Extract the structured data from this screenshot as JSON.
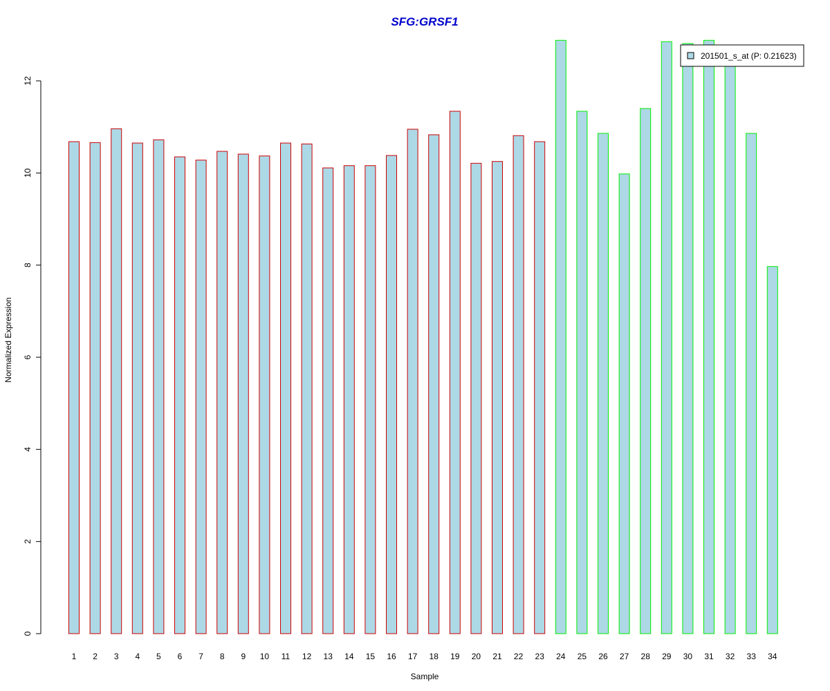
{
  "chart_data": {
    "type": "bar",
    "title": "SFG:GRSF1",
    "xlabel": "Sample",
    "ylabel": "Normalized Expression",
    "categories": [
      "1",
      "2",
      "3",
      "4",
      "5",
      "6",
      "7",
      "8",
      "9",
      "10",
      "11",
      "12",
      "13",
      "14",
      "15",
      "16",
      "17",
      "18",
      "19",
      "20",
      "21",
      "22",
      "23",
      "24",
      "25",
      "26",
      "27",
      "28",
      "29",
      "30",
      "31",
      "32",
      "33",
      "34"
    ],
    "values": [
      10.68,
      10.66,
      10.96,
      10.65,
      10.72,
      10.35,
      10.28,
      10.47,
      10.41,
      10.37,
      10.65,
      10.63,
      10.11,
      10.16,
      10.16,
      10.38,
      10.95,
      10.83,
      11.34,
      10.21,
      10.25,
      10.81,
      10.68,
      12.88,
      11.34,
      10.86,
      9.98,
      11.4,
      12.85,
      12.81,
      12.88,
      12.6,
      10.86,
      7.97
    ],
    "group_border_colors": [
      "#cc0000",
      "#cc0000",
      "#cc0000",
      "#cc0000",
      "#cc0000",
      "#cc0000",
      "#cc0000",
      "#cc0000",
      "#cc0000",
      "#cc0000",
      "#cc0000",
      "#cc0000",
      "#cc0000",
      "#cc0000",
      "#cc0000",
      "#cc0000",
      "#cc0000",
      "#cc0000",
      "#cc0000",
      "#cc0000",
      "#cc0000",
      "#cc0000",
      "#cc0000",
      "#00ee00",
      "#00ee00",
      "#00ee00",
      "#00ee00",
      "#00ee00",
      "#00ee00",
      "#00ee00",
      "#00ee00",
      "#00ee00",
      "#00ee00",
      "#00ee00"
    ],
    "bar_fill": "#add8e6",
    "title_color": "#0000cc",
    "ylim": [
      0,
      12.9
    ],
    "yticks": [
      0,
      2,
      4,
      6,
      8,
      10,
      12
    ],
    "grid": false,
    "legend": {
      "position": "top-right",
      "entries": [
        {
          "label": "201501_s_at (P: 0.21623)",
          "color": "#add8e6"
        }
      ]
    }
  }
}
